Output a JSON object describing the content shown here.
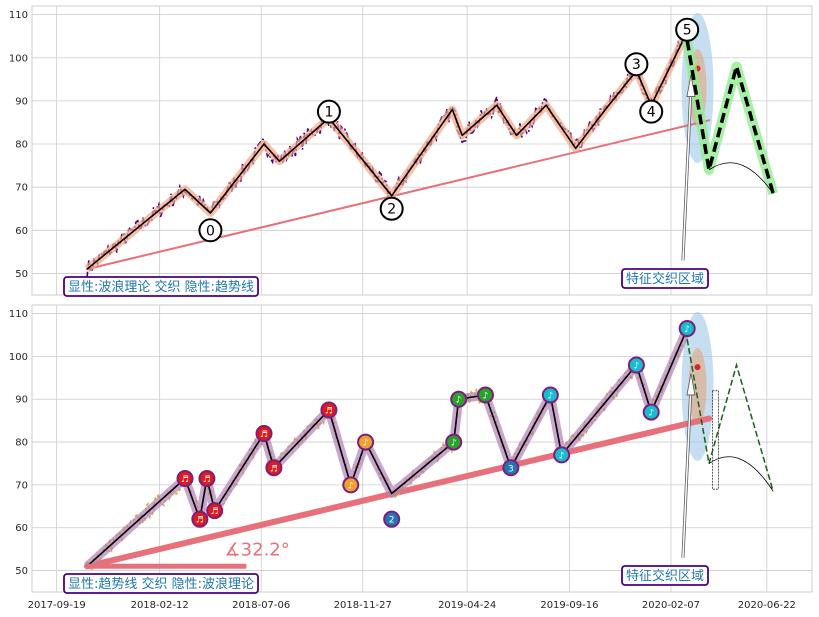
{
  "chart_data": [
    {
      "type": "line",
      "panel": "top",
      "ylim": [
        45,
        112
      ],
      "yticks": [
        50,
        60,
        70,
        80,
        90,
        100,
        110
      ],
      "grid": true,
      "price_color": "#4b0082",
      "wave_points": [
        {
          "date": "2017-11-01",
          "value": 51
        },
        {
          "date": "2018-03-20",
          "value": 69.5
        },
        {
          "date": "2018-04-25",
          "value": 64
        },
        {
          "date": "2018-07-10",
          "value": 80
        },
        {
          "date": "2018-08-01",
          "value": 76
        },
        {
          "date": "2018-10-10",
          "value": 86
        },
        {
          "date": "2019-01-07",
          "value": 68
        },
        {
          "date": "2019-04-03",
          "value": 88
        },
        {
          "date": "2019-04-17",
          "value": 82
        },
        {
          "date": "2019-06-05",
          "value": 89
        },
        {
          "date": "2019-07-03",
          "value": 82
        },
        {
          "date": "2019-08-14",
          "value": 89
        },
        {
          "date": "2019-09-25",
          "value": 79
        },
        {
          "date": "2019-11-06",
          "value": 88
        },
        {
          "date": "2019-12-20",
          "value": 97
        },
        {
          "date": "2020-01-10",
          "value": 89
        },
        {
          "date": "2020-03-01",
          "value": 106
        }
      ],
      "wave_labels": [
        {
          "label": "0",
          "date": "2018-04-25",
          "value": 60
        },
        {
          "label": "1",
          "date": "2018-10-10",
          "value": 87.5
        },
        {
          "label": "2",
          "date": "2019-01-07",
          "value": 65
        },
        {
          "label": "3",
          "date": "2019-12-20",
          "value": 98.5
        },
        {
          "label": "4",
          "date": "2020-01-10",
          "value": 87.5
        },
        {
          "label": "5",
          "date": "2020-03-01",
          "value": 106.5
        }
      ],
      "trend_line": {
        "start": {
          "date": "2017-11-01",
          "value": 51
        },
        "end": {
          "date": "2020-04-01",
          "value": 85.5
        },
        "color": "#e8707a"
      },
      "projection": [
        {
          "date": "2020-03-01",
          "value": 104
        },
        {
          "date": "2020-04-01",
          "value": 74
        },
        {
          "date": "2020-05-10",
          "value": 98
        },
        {
          "date": "2020-07-01",
          "value": 68.5
        }
      ],
      "label_box": "显性:波浪理论 交织 隐性:趋势线",
      "zone_label": "特征交织区域"
    },
    {
      "type": "line",
      "panel": "bottom",
      "ylim": [
        45,
        112
      ],
      "yticks": [
        50,
        60,
        70,
        80,
        90,
        100,
        110
      ],
      "grid": true,
      "price_color": "#e8a83a",
      "xticks": [
        "2017-09-19",
        "2018-02-12",
        "2018-07-06",
        "2018-11-27",
        "2019-04-24",
        "2019-09-16",
        "2020-02-07",
        "2020-06-22"
      ],
      "wave_points": [
        {
          "date": "2017-11-01",
          "value": 51
        },
        {
          "date": "2018-03-20",
          "value": 71.5
        },
        {
          "date": "2018-04-10",
          "value": 62
        },
        {
          "date": "2018-04-20",
          "value": 71.5
        },
        {
          "date": "2018-05-01",
          "value": 64
        },
        {
          "date": "2018-07-10",
          "value": 82
        },
        {
          "date": "2018-07-24",
          "value": 74
        },
        {
          "date": "2018-10-10",
          "value": 87.5
        },
        {
          "date": "2018-11-10",
          "value": 70
        },
        {
          "date": "2018-12-01",
          "value": 80
        },
        {
          "date": "2019-01-07",
          "value": 68
        },
        {
          "date": "2019-04-05",
          "value": 80
        },
        {
          "date": "2019-04-12",
          "value": 90
        },
        {
          "date": "2019-05-20",
          "value": 91
        },
        {
          "date": "2019-06-25",
          "value": 74
        },
        {
          "date": "2019-08-20",
          "value": 91
        },
        {
          "date": "2019-09-05",
          "value": 77
        },
        {
          "date": "2019-12-20",
          "value": 98
        },
        {
          "date": "2020-01-10",
          "value": 87
        },
        {
          "date": "2020-03-01",
          "value": 106.5
        }
      ],
      "markers": [
        {
          "glyph": "♬",
          "date": "2018-03-20",
          "value": 71.5,
          "color": "#e31a1c"
        },
        {
          "glyph": "♬",
          "date": "2018-04-10",
          "value": 62,
          "color": "#e31a1c"
        },
        {
          "glyph": "♬",
          "date": "2018-04-20",
          "value": 71.5,
          "color": "#e31a1c"
        },
        {
          "glyph": "♬",
          "date": "2018-05-01",
          "value": 64,
          "color": "#e31a1c"
        },
        {
          "glyph": "♬",
          "date": "2018-07-10",
          "value": 82,
          "color": "#e31a1c"
        },
        {
          "glyph": "♬",
          "date": "2018-07-24",
          "value": 74,
          "color": "#e31a1c"
        },
        {
          "glyph": "♬",
          "date": "2018-10-10",
          "value": 87.5,
          "color": "#e31a1c"
        },
        {
          "glyph": "♪",
          "date": "2018-11-10",
          "value": 70,
          "color": "#f0a030"
        },
        {
          "glyph": "♪",
          "date": "2018-12-01",
          "value": 80,
          "color": "#f0a030"
        },
        {
          "glyph": "2",
          "date": "2019-01-07",
          "value": 62,
          "color": "#1f77b4"
        },
        {
          "glyph": "♪",
          "date": "2019-04-05",
          "value": 80,
          "color": "#2ca02c"
        },
        {
          "glyph": "♪",
          "date": "2019-04-12",
          "value": 90,
          "color": "#2ca02c"
        },
        {
          "glyph": "♪",
          "date": "2019-05-20",
          "value": 91,
          "color": "#2ca02c"
        },
        {
          "glyph": "3",
          "date": "2019-06-25",
          "value": 74,
          "color": "#1f77b4"
        },
        {
          "glyph": "♪",
          "date": "2019-08-20",
          "value": 91,
          "color": "#17becf"
        },
        {
          "glyph": "♪",
          "date": "2019-09-05",
          "value": 77,
          "color": "#17becf"
        },
        {
          "glyph": "♪",
          "date": "2019-12-20",
          "value": 98,
          "color": "#17becf"
        },
        {
          "glyph": "♪",
          "date": "2020-01-10",
          "value": 87,
          "color": "#17becf"
        },
        {
          "glyph": "♪",
          "date": "2020-03-01",
          "value": 106.5,
          "color": "#17becf"
        }
      ],
      "trend_line": {
        "start": {
          "date": "2017-11-01",
          "value": 51
        },
        "end": {
          "date": "2020-04-01",
          "value": 85.5
        },
        "color": "#e8707a"
      },
      "angle_label": "∡32.2°",
      "projection": [
        {
          "date": "2020-03-01",
          "value": 104
        },
        {
          "date": "2020-04-01",
          "value": 75
        },
        {
          "date": "2020-05-10",
          "value": 98
        },
        {
          "date": "2020-07-01",
          "value": 68.5
        }
      ],
      "label_box": "显性:趋势线 交织 隐性:波浪理论",
      "zone_label": "特征交织区域"
    }
  ]
}
